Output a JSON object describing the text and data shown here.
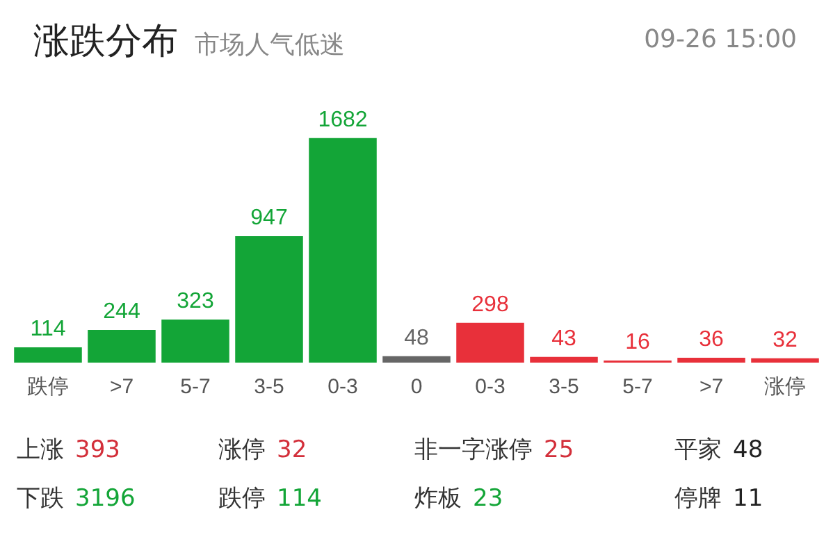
{
  "chart_data": {
    "type": "bar",
    "title": "涨跌分布",
    "subtitle": "市场人气低迷",
    "categories": [
      "跌停",
      ">7",
      "5-7",
      "3-5",
      "0-3",
      "0",
      "0-3",
      "3-5",
      "5-7",
      ">7",
      "涨停"
    ],
    "values": [
      114,
      244,
      323,
      947,
      1682,
      48,
      298,
      43,
      16,
      36,
      32
    ],
    "colors": [
      "#13a537",
      "#13a537",
      "#13a537",
      "#13a537",
      "#13a537",
      "#666666",
      "#e8303a",
      "#e8303a",
      "#e8303a",
      "#e8303a",
      "#e8303a"
    ],
    "data_labels": true,
    "annotations": [
      "09-26 15:00",
      "上涨 393",
      "涨停 32",
      "非一字涨停 25",
      "平家 48",
      "下跌 3196",
      "跌停 114",
      "炸板 23",
      "停牌 11"
    ]
  }
}
